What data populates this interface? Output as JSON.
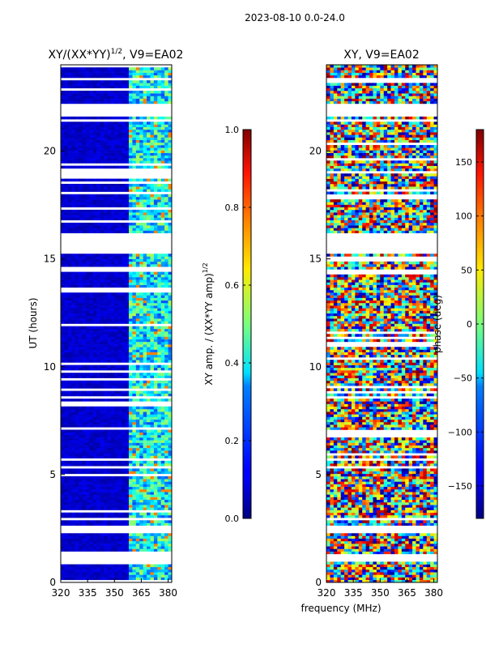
{
  "suptitle": "2023-08-10 0.0-24.0",
  "chart_data": [
    {
      "type": "heatmap",
      "title": "XY/(XX*YY)^1/2, V9=EA02",
      "title_main": "XY/(XX*YY)",
      "title_exp": "1/2",
      "title_tail": ", V9=EA02",
      "xlabel": "",
      "ylabel": "UT (hours)",
      "xlim": [
        320,
        382
      ],
      "ylim": [
        0,
        24
      ],
      "xticks": [
        320,
        335,
        350,
        365,
        380
      ],
      "yticks": [
        0,
        5,
        10,
        15,
        20
      ],
      "colorbar": {
        "range": [
          0.0,
          1.0
        ],
        "ticks": [
          "0.0",
          "0.2",
          "0.4",
          "0.6",
          "0.8",
          "1.0"
        ],
        "label": "XY amp. / (XX*YY amp)^1/2",
        "label_main": "XY amp. / (XX*YY amp)",
        "label_exp": "1/2",
        "colormap": "jet"
      },
      "data_gaps_hours": [
        [
          2.9,
          3.0
        ],
        [
          2.3,
          2.6
        ],
        [
          1.0,
          1.3
        ],
        [
          15.2,
          16.2
        ],
        [
          21.6,
          22.2
        ],
        [
          8.5,
          8.6
        ]
      ],
      "band_360_383_mean": 0.4,
      "band_320_359_mean": 0.05
    },
    {
      "type": "heatmap",
      "title": "XY, V9=EA02",
      "xlabel": "frequency (MHz)",
      "ylabel": "",
      "xlim": [
        320,
        382
      ],
      "ylim": [
        0,
        24
      ],
      "xticks": [
        320,
        335,
        350,
        365,
        380
      ],
      "yticks": [
        0,
        5,
        10,
        15,
        20
      ],
      "colorbar": {
        "range": [
          -180,
          180
        ],
        "ticks": [
          "−150",
          "−100",
          "−50",
          "0",
          "50",
          "100",
          "150"
        ],
        "label": "phase (deg)",
        "colormap": "jet"
      },
      "data_gaps_hours": [
        [
          2.9,
          3.0
        ],
        [
          2.3,
          2.6
        ],
        [
          1.0,
          1.3
        ],
        [
          15.2,
          16.2
        ],
        [
          21.6,
          22.2
        ],
        [
          8.5,
          8.6
        ]
      ]
    }
  ]
}
